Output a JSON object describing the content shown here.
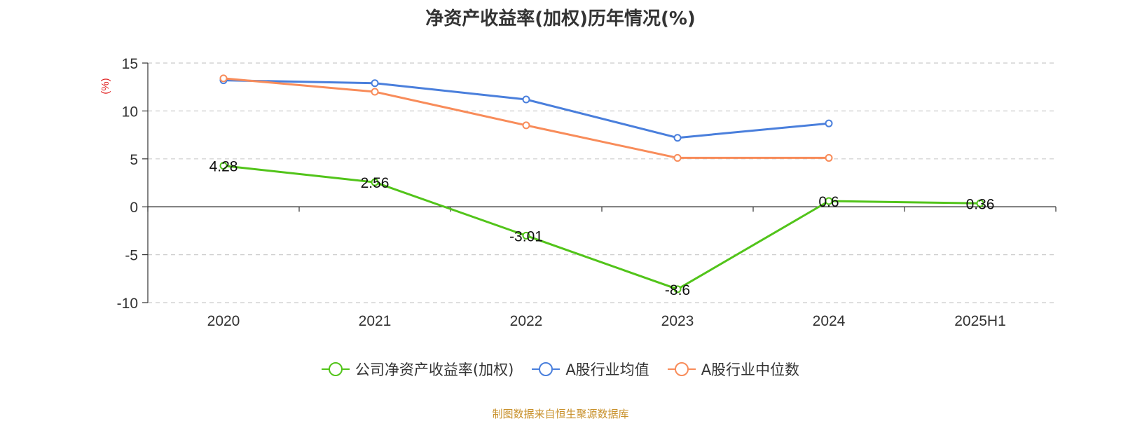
{
  "chart_data": {
    "type": "line",
    "title": "净资产收益率(加权)历年情况(%)",
    "ylabel": "(%)",
    "xlabel": "",
    "categories": [
      "2020",
      "2021",
      "2022",
      "2023",
      "2024",
      "2025H1"
    ],
    "ylim": [
      -10,
      15
    ],
    "yticks": [
      -10,
      -5,
      0,
      5,
      10,
      15
    ],
    "grid": true,
    "legend_position": "bottom",
    "series": [
      {
        "name": "公司净资产收益率(加权)",
        "color": "#52c41a",
        "values": [
          4.28,
          2.56,
          -3.01,
          -8.6,
          0.6,
          0.36
        ],
        "data_labels": [
          "4.28",
          "2.56",
          "-3.01",
          "-8.6",
          "0.6",
          "0.36"
        ]
      },
      {
        "name": "A股行业均值",
        "color": "#4a7fdc",
        "values": [
          13.2,
          12.9,
          11.2,
          7.2,
          8.7,
          null
        ]
      },
      {
        "name": "A股行业中位数",
        "color": "#f88c5a",
        "values": [
          13.4,
          12.0,
          8.5,
          5.1,
          5.1,
          null
        ]
      }
    ]
  },
  "source": "制图数据来自恒生聚源数据库"
}
